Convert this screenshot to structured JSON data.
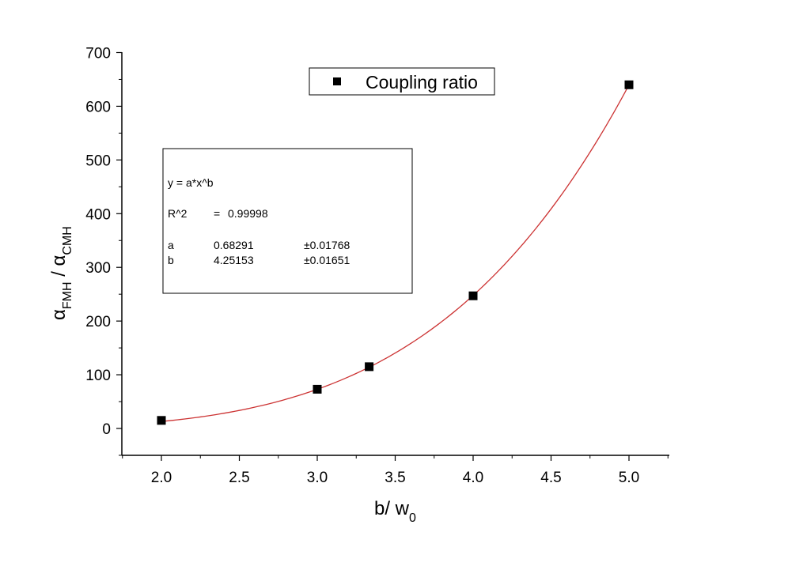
{
  "chart_data": {
    "type": "scatter",
    "title": "",
    "xlabel": {
      "main": "b/ w",
      "sub": "0"
    },
    "ylabel": {
      "alpha1": "α",
      "sub1": "FMH",
      "sep": " / ",
      "alpha2": "α",
      "sub2": "CMH"
    },
    "xlim": [
      1.75,
      5.25
    ],
    "ylim": [
      -50,
      700
    ],
    "x_ticks": [
      "2.0",
      "2.5",
      "3.0",
      "3.5",
      "4.0",
      "4.5",
      "5.0"
    ],
    "y_ticks": [
      "0",
      "100",
      "200",
      "300",
      "400",
      "500",
      "600",
      "700"
    ],
    "grid": false,
    "legend": {
      "position": "top-center",
      "entries": [
        "Coupling ratio"
      ]
    },
    "series": [
      {
        "name": "Coupling ratio",
        "marker": "square",
        "color": "#000000",
        "points": [
          {
            "x": 2.0,
            "y": 15
          },
          {
            "x": 3.0,
            "y": 73
          },
          {
            "x": 3.333,
            "y": 115
          },
          {
            "x": 4.0,
            "y": 247
          },
          {
            "x": 5.0,
            "y": 640
          }
        ]
      }
    ],
    "fit": {
      "color": "#cc3333",
      "x_range": [
        2.0,
        5.0
      ],
      "a_value": 0.68291,
      "b_value": 4.25153,
      "equation": "y = a*x^b",
      "r2_label": "R^2",
      "r2_eq": "=",
      "r2_value": "0.99998",
      "rows": [
        {
          "name": "a",
          "value": "0.68291",
          "error": "±0.01768"
        },
        {
          "name": "b",
          "value": "4.25153",
          "error": "±0.01651"
        }
      ]
    }
  }
}
